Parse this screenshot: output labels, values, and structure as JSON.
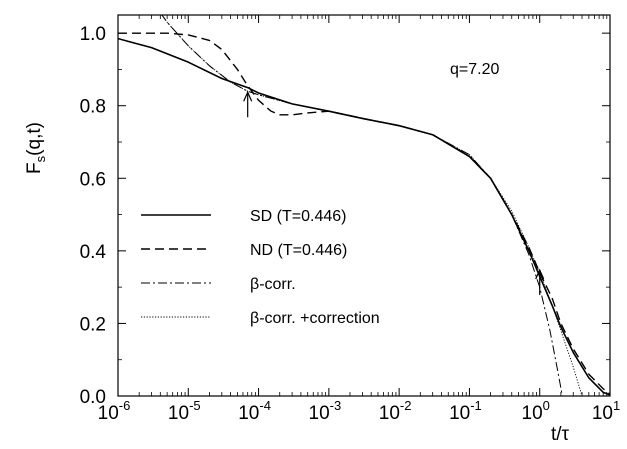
{
  "chart_data": {
    "type": "line",
    "title": "",
    "xlabel": "t/τ",
    "ylabel": "F_s(q,t)",
    "x_scale": "log",
    "xlim": [
      1e-06,
      10
    ],
    "ylim": [
      0.0,
      1.05
    ],
    "grid": false,
    "legend_position": "center-left",
    "annotation": "q=7.20",
    "arrows": [
      {
        "x": 7e-05,
        "y": 0.84
      },
      {
        "x": 1.0,
        "y": 0.35
      }
    ],
    "x_ticks": [
      {
        "base": "10",
        "exp": "-6"
      },
      {
        "base": "10",
        "exp": "-5"
      },
      {
        "base": "10",
        "exp": "-4"
      },
      {
        "base": "10",
        "exp": "-3"
      },
      {
        "base": "10",
        "exp": "-2"
      },
      {
        "base": "10",
        "exp": "-1"
      },
      {
        "base": "10",
        "exp": "0"
      },
      {
        "base": "10",
        "exp": "1"
      }
    ],
    "y_ticks": [
      "0.0",
      "0.2",
      "0.4",
      "0.6",
      "0.8",
      "1.0"
    ],
    "series": [
      {
        "name": "SD (T=0.446)",
        "style": "solid",
        "x": [
          1e-06,
          3e-06,
          1e-05,
          3e-05,
          7e-05,
          0.0001,
          0.0003,
          0.001,
          0.003,
          0.01,
          0.03,
          0.1,
          0.2,
          0.4,
          0.7,
          1.0,
          1.5,
          2,
          3,
          5,
          8,
          10
        ],
        "y": [
          0.985,
          0.96,
          0.92,
          0.875,
          0.85,
          0.835,
          0.805,
          0.785,
          0.765,
          0.745,
          0.72,
          0.66,
          0.6,
          0.5,
          0.4,
          0.33,
          0.25,
          0.19,
          0.12,
          0.05,
          0.01,
          0.003
        ]
      },
      {
        "name": "ND (T=0.446)",
        "style": "dashed",
        "x": [
          1e-06,
          5e-06,
          1e-05,
          2e-05,
          3e-05,
          5e-05,
          7e-05,
          0.0001,
          0.00015,
          0.0002,
          0.0003,
          0.0005,
          0.001,
          0.003,
          0.01,
          0.03,
          0.1,
          0.2,
          0.4,
          0.7,
          1.0,
          1.5,
          2,
          3,
          5,
          8,
          10
        ],
        "y": [
          1.0,
          1.0,
          0.995,
          0.98,
          0.955,
          0.9,
          0.855,
          0.815,
          0.785,
          0.775,
          0.775,
          0.78,
          0.785,
          0.765,
          0.745,
          0.72,
          0.66,
          0.6,
          0.5,
          0.41,
          0.34,
          0.27,
          0.2,
          0.13,
          0.06,
          0.02,
          0.005
        ]
      },
      {
        "name": "β-corr.",
        "style": "dashdot",
        "x": [
          1e-06,
          3e-06,
          5e-06,
          1e-05,
          2e-05,
          4e-05,
          7e-05,
          0.0001,
          0.0003,
          0.001,
          0.003,
          0.01,
          0.03,
          0.1,
          0.2,
          0.4,
          0.7,
          1.0,
          1.4,
          1.8,
          2.1
        ],
        "y": [
          1.2,
          1.09,
          1.03,
          0.965,
          0.91,
          0.865,
          0.84,
          0.83,
          0.805,
          0.785,
          0.765,
          0.745,
          0.72,
          0.665,
          0.6,
          0.5,
          0.39,
          0.3,
          0.18,
          0.07,
          0.0
        ]
      },
      {
        "name": "β-corr. +correction",
        "style": "dotted",
        "x": [
          1e-06,
          3e-06,
          5e-06,
          1e-05,
          2e-05,
          4e-05,
          7e-05,
          0.0001,
          0.0003,
          0.001,
          0.003,
          0.01,
          0.03,
          0.1,
          0.2,
          0.4,
          0.7,
          1.0,
          1.5,
          2.0,
          3.0,
          4.0
        ],
        "y": [
          1.2,
          1.09,
          1.03,
          0.965,
          0.91,
          0.865,
          0.84,
          0.83,
          0.805,
          0.785,
          0.765,
          0.745,
          0.72,
          0.665,
          0.6,
          0.51,
          0.41,
          0.34,
          0.25,
          0.18,
          0.08,
          0.0
        ]
      }
    ]
  }
}
